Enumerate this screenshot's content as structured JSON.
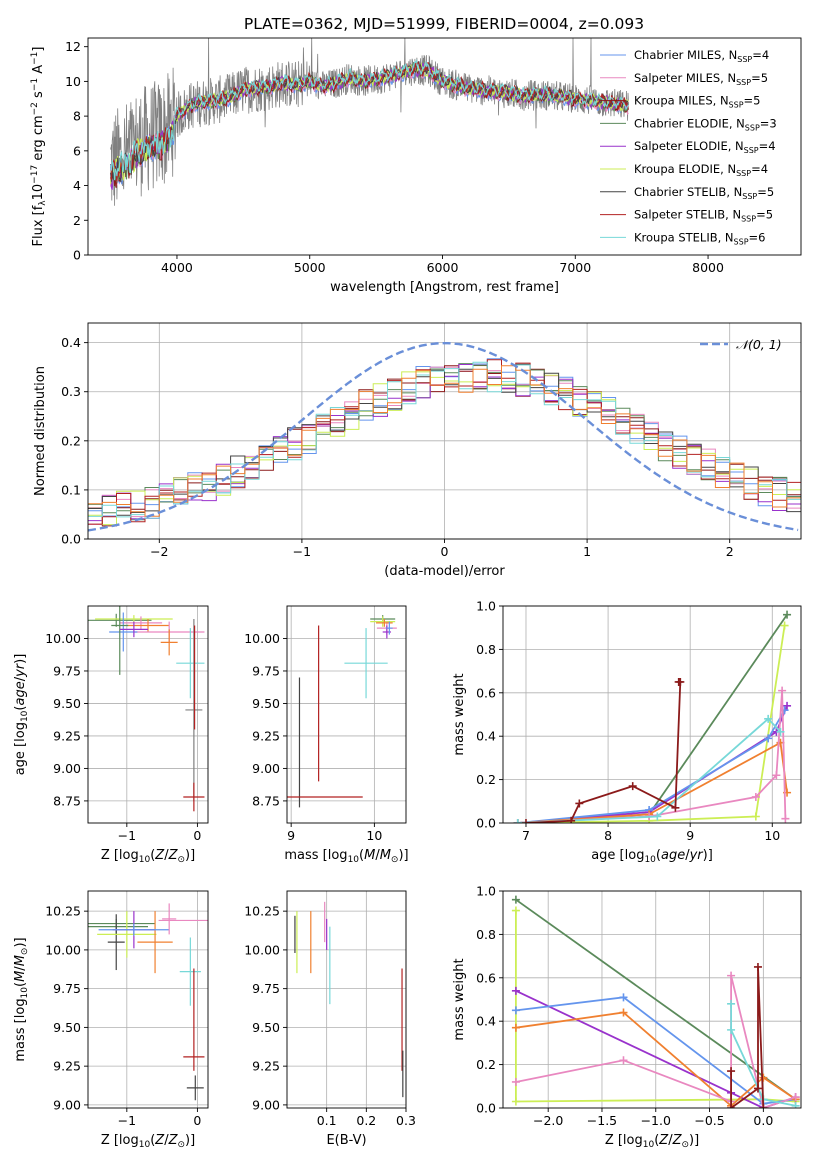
{
  "figure_title": "PLATE=0362, MJD=51999, FIBERID=0004, z=0.093",
  "chart_data": [
    {
      "id": "spectrum",
      "type": "line",
      "title": "PLATE=0362, MJD=51999, FIBERID=0004, z=0.093",
      "xlabel": "wavelength [Angstrom, rest frame]",
      "ylabel": "Flux [f_λ 10^-17 erg cm^-2 s^-1 A^-1]",
      "xlim": [
        3330,
        8700
      ],
      "ylim": [
        0,
        12.5
      ],
      "xticks": [
        4000,
        5000,
        6000,
        7000,
        8000
      ],
      "yticks": [
        0,
        2,
        4,
        6,
        8,
        10,
        12
      ],
      "observed_color": "#808080",
      "grid": false,
      "legend_position": "upper right",
      "continuum": {
        "x": [
          3500,
          3600,
          3700,
          3800,
          3900,
          4000,
          4100,
          4200,
          4300,
          4400,
          4500,
          4600,
          4700,
          4800,
          4900,
          5000,
          5100,
          5200,
          5300,
          5400,
          5500,
          5600,
          5700,
          5800,
          5900,
          6000,
          6200,
          6400,
          6600,
          6800,
          7000,
          7200,
          7400
        ],
        "y": [
          5.2,
          5.6,
          6.4,
          6.8,
          7.0,
          8.0,
          8.6,
          8.8,
          8.9,
          9.1,
          9.5,
          9.6,
          9.7,
          9.9,
          9.8,
          10.0,
          9.7,
          9.9,
          10.2,
          10.0,
          10.1,
          10.3,
          10.5,
          10.7,
          10.6,
          10.0,
          9.6,
          9.4,
          9.2,
          9.2,
          9.0,
          8.8,
          8.6
        ]
      },
      "series": [
        {
          "name": "Chabrier MILES, N_SSP=4",
          "color": "#6495ED"
        },
        {
          "name": "Salpeter MILES, N_SSP=5",
          "color": "#E988C0"
        },
        {
          "name": "Kroupa MILES, N_SSP=5",
          "color": "#8B1A1A"
        },
        {
          "name": "Chabrier ELODIE, N_SSP=3",
          "color": "#5B8A5B"
        },
        {
          "name": "Salpeter ELODIE, N_SSP=4",
          "color": "#9932CC"
        },
        {
          "name": "Kroupa ELODIE, N_SSP=4",
          "color": "#CCEE55"
        },
        {
          "name": "Chabrier STELIB, N_SSP=5",
          "color": "#444444"
        },
        {
          "name": "Salpeter STELIB, N_SSP=5",
          "color": "#B22222"
        },
        {
          "name": "Kroupa STELIB, N_SSP=6",
          "color": "#77D8D8"
        }
      ]
    },
    {
      "id": "residuals",
      "type": "line",
      "xlabel": "(data-model)/error",
      "ylabel": "Normed distribution",
      "xlim": [
        -2.5,
        2.5
      ],
      "ylim": [
        0,
        0.44
      ],
      "xticks": [
        -2,
        -1,
        0,
        1,
        2
      ],
      "yticks": [
        0.0,
        0.1,
        0.2,
        0.3,
        0.4
      ],
      "grid": true,
      "legend_position": "upper right",
      "reference_curve": {
        "label": "𝒩(0, 1)",
        "color": "#6A8FD8",
        "style": "dashed",
        "mean": 0,
        "sigma": 1
      },
      "bin_width": 0.1,
      "histogram_colors": [
        "#6495ED",
        "#E988C0",
        "#8B1A1A",
        "#5B8A5B",
        "#9932CC",
        "#CCEE55",
        "#444444",
        "#B22222",
        "#77D8D8",
        "#F08030"
      ]
    },
    {
      "id": "age_vs_Z",
      "type": "scatter",
      "xlabel": "Z [log10(Z/Z⊙)]",
      "ylabel": "age [log10(age/yr)]",
      "xlim": [
        -1.55,
        0.15
      ],
      "ylim": [
        8.58,
        10.25
      ],
      "xticks": [
        -1,
        0
      ],
      "yticks": [
        8.75,
        9.0,
        9.25,
        9.5,
        9.75,
        10.0
      ],
      "grid": true,
      "points": [
        {
          "x": -1.15,
          "xerr": 0.5,
          "y": 10.14,
          "yerr": 0.05,
          "color": "#5B8A5B"
        },
        {
          "x": -0.9,
          "xerr": 0.55,
          "y": 10.15,
          "yerr": 0.03,
          "color": "#CCEE55"
        },
        {
          "x": -0.8,
          "xerr": 0.3,
          "y": 10.12,
          "yerr": 0.05,
          "color": "#E988C0"
        },
        {
          "x": -0.7,
          "xerr": 0.3,
          "y": 10.1,
          "yerr": 0.05,
          "color": "#F08030"
        },
        {
          "x": -0.4,
          "xerr": 0.5,
          "y": 10.05,
          "yerr": 0.08,
          "color": "#E988C0"
        },
        {
          "x": -1.05,
          "xerr": 0.2,
          "y": 10.05,
          "yerr": 0.15,
          "color": "#6495ED"
        },
        {
          "x": -1.1,
          "xerr": 0.12,
          "y": 10.1,
          "yerr": 0.38,
          "color": "#5B8A5B"
        },
        {
          "x": -0.9,
          "xerr": 0.2,
          "y": 10.07,
          "yerr": 0.06,
          "color": "#9932CC"
        },
        {
          "x": -0.4,
          "xerr": 0.12,
          "y": 9.97,
          "yerr": 0.1,
          "color": "#F08030"
        },
        {
          "x": -0.1,
          "xerr": 0.2,
          "y": 9.81,
          "yerr": 0.27,
          "color": "#77D8D8"
        },
        {
          "x": -0.05,
          "xerr": 0.12,
          "y": 9.45,
          "yerr": 0.7,
          "color": "#808080"
        },
        {
          "x": -0.05,
          "xerr": 0.15,
          "y": 8.78,
          "yerr": 0.11,
          "color": "#B22222"
        },
        {
          "x": -0.04,
          "xerr": 0.0,
          "y": 9.7,
          "yerr": 0.4,
          "color": "#B22222"
        }
      ]
    },
    {
      "id": "age_vs_mass",
      "type": "scatter",
      "xlabel": "mass [log10(M/M⊙)]",
      "ylabel": "",
      "xlim": [
        8.95,
        10.38
      ],
      "ylim": [
        8.58,
        10.25
      ],
      "xticks": [
        9,
        10
      ],
      "yticks": [
        8.75,
        9.0,
        9.25,
        9.5,
        9.75,
        10.0
      ],
      "grid": true,
      "points": [
        {
          "x": 10.1,
          "xerr": 0.15,
          "y": 10.15,
          "yerr": 0.03,
          "color": "#5B8A5B"
        },
        {
          "x": 10.1,
          "xerr": 0.15,
          "y": 10.13,
          "yerr": 0.04,
          "color": "#CCEE55"
        },
        {
          "x": 10.15,
          "xerr": 0.12,
          "y": 10.08,
          "yerr": 0.05,
          "color": "#E988C0"
        },
        {
          "x": 10.12,
          "xerr": 0.1,
          "y": 10.12,
          "yerr": 0.03,
          "color": "#F08030"
        },
        {
          "x": 10.15,
          "xerr": 0.05,
          "y": 10.05,
          "yerr": 0.05,
          "color": "#9932CC"
        },
        {
          "x": 10.18,
          "xerr": 0.04,
          "y": 10.08,
          "yerr": 0.05,
          "color": "#6495ED"
        },
        {
          "x": 9.9,
          "xerr": 0.26,
          "y": 9.81,
          "yerr": 0.27,
          "color": "#77D8D8"
        },
        {
          "x": 9.1,
          "xerr": 0.0,
          "y": 9.2,
          "yerr": 0.5,
          "color": "#444444"
        },
        {
          "x": 9.33,
          "xerr": 0.53,
          "y": 8.78,
          "yerr": 0.0,
          "color": "#B22222"
        },
        {
          "x": 9.33,
          "xerr": 0.0,
          "y": 9.5,
          "yerr": 0.6,
          "color": "#B22222"
        },
        {
          "x": 9.1,
          "xerr": 0.0,
          "y": 8.78,
          "yerr": 0.0,
          "color": "#444444"
        }
      ]
    },
    {
      "id": "weight_vs_age",
      "type": "line",
      "xlabel": "age [log10(age/yr)]",
      "ylabel": "mass weight",
      "xlim": [
        6.72,
        10.35
      ],
      "ylim": [
        0,
        1.0
      ],
      "xticks": [
        7,
        8,
        9,
        10
      ],
      "yticks": [
        0.0,
        0.2,
        0.4,
        0.6,
        0.8,
        1.0
      ],
      "grid": true,
      "series": [
        {
          "color": "#5B8A5B",
          "x": [
            6.9,
            8.5,
            10.18
          ],
          "y": [
            0.0,
            0.04,
            0.96
          ]
        },
        {
          "color": "#CCEE55",
          "x": [
            6.9,
            8.5,
            9.8,
            10.15
          ],
          "y": [
            0.0,
            0.01,
            0.03,
            0.91
          ]
        },
        {
          "color": "#9932CC",
          "x": [
            6.9,
            8.5,
            10.05,
            10.18
          ],
          "y": [
            0.0,
            0.05,
            0.42,
            0.54
          ]
        },
        {
          "color": "#6495ED",
          "x": [
            6.9,
            8.5,
            9.95,
            10.15
          ],
          "y": [
            0.0,
            0.06,
            0.39,
            0.52
          ]
        },
        {
          "color": "#F08030",
          "x": [
            6.9,
            8.5,
            10.1,
            10.18
          ],
          "y": [
            0.0,
            0.04,
            0.37,
            0.14
          ]
        },
        {
          "color": "#E988C0",
          "x": [
            6.9,
            8.5,
            9.8,
            10.05,
            10.12,
            10.16
          ],
          "y": [
            0.0,
            0.03,
            0.12,
            0.22,
            0.61,
            0.02
          ]
        },
        {
          "color": "#77D8D8",
          "x": [
            6.9,
            8.6,
            9.95,
            10.1
          ],
          "y": [
            0.0,
            0.03,
            0.48,
            0.42
          ]
        },
        {
          "color": "#8B1A1A",
          "x": [
            7.0,
            7.55,
            7.65,
            8.3,
            8.82,
            8.88,
            8.86
          ],
          "y": [
            0.0,
            0.01,
            0.09,
            0.17,
            0.07,
            0.65,
            0.65
          ]
        }
      ]
    },
    {
      "id": "mass_vs_Z",
      "type": "scatter",
      "xlabel": "Z [log10(Z/Z⊙)]",
      "ylabel": "mass [log10(M/M⊙)]",
      "xlim": [
        -1.55,
        0.15
      ],
      "ylim": [
        8.98,
        10.38
      ],
      "xticks": [
        -1,
        0
      ],
      "yticks": [
        9.0,
        9.25,
        9.5,
        9.75,
        10.0,
        10.25
      ],
      "grid": true,
      "points": [
        {
          "x": -1.15,
          "xerr": 0.45,
          "y": 10.15,
          "yerr": 0.05,
          "color": "#5B8A5B"
        },
        {
          "x": -1.1,
          "xerr": 0.5,
          "y": 10.17,
          "yerr": 0.0,
          "color": "#5B8A5B"
        },
        {
          "x": -1.15,
          "xerr": 0.12,
          "y": 10.05,
          "yerr": 0.18,
          "color": "#444444"
        },
        {
          "x": -1.0,
          "xerr": 0.42,
          "y": 10.1,
          "yerr": 0.15,
          "color": "#CCEE55"
        },
        {
          "x": -0.9,
          "xerr": 0.3,
          "y": 10.13,
          "yerr": 0.12,
          "color": "#9932CC"
        },
        {
          "x": -0.6,
          "xerr": 0.25,
          "y": 10.05,
          "yerr": 0.2,
          "color": "#F08030"
        },
        {
          "x": -0.9,
          "xerr": 0.5,
          "y": 10.13,
          "yerr": 0.04,
          "color": "#6495ED"
        },
        {
          "x": -0.4,
          "xerr": 0.1,
          "y": 10.2,
          "yerr": 0.1,
          "color": "#E988C0"
        },
        {
          "x": -0.2,
          "xerr": 0.35,
          "y": 10.19,
          "yerr": 0.0,
          "color": "#E988C0"
        },
        {
          "x": -0.1,
          "xerr": 0.15,
          "y": 9.86,
          "yerr": 0.22,
          "color": "#77D8D8"
        },
        {
          "x": -0.05,
          "xerr": 0.15,
          "y": 9.31,
          "yerr": 0.0,
          "color": "#B22222"
        },
        {
          "x": -0.05,
          "xerr": 0.0,
          "y": 9.55,
          "yerr": 0.33,
          "color": "#B22222"
        },
        {
          "x": -0.03,
          "xerr": 0.12,
          "y": 9.11,
          "yerr": 0.08,
          "color": "#444444"
        }
      ]
    },
    {
      "id": "mass_vs_EBV",
      "type": "scatter",
      "xlabel": "E(B-V)",
      "ylabel": "",
      "xlim": [
        0.0,
        0.3
      ],
      "ylim": [
        8.98,
        10.38
      ],
      "xticks": [
        0.1,
        0.2,
        0.3
      ],
      "yticks": [
        9.0,
        9.25,
        9.5,
        9.75,
        10.0,
        10.25
      ],
      "grid": true,
      "points": [
        {
          "x": 0.02,
          "xerr": 0.0,
          "y": 10.1,
          "yerr": 0.12,
          "color": "#444444"
        },
        {
          "x": 0.025,
          "xerr": 0.0,
          "y": 10.05,
          "yerr": 0.2,
          "color": "#CCEE55"
        },
        {
          "x": 0.06,
          "xerr": 0.0,
          "y": 10.05,
          "yerr": 0.2,
          "color": "#F08030"
        },
        {
          "x": 0.095,
          "xerr": 0.0,
          "y": 10.18,
          "yerr": 0.13,
          "color": "#E988C0"
        },
        {
          "x": 0.1,
          "xerr": 0.0,
          "y": 10.1,
          "yerr": 0.1,
          "color": "#9932CC"
        },
        {
          "x": 0.108,
          "xerr": 0.0,
          "y": 9.9,
          "yerr": 0.25,
          "color": "#77D8D8"
        },
        {
          "x": 0.29,
          "xerr": 0.0,
          "y": 9.55,
          "yerr": 0.33,
          "color": "#B22222"
        },
        {
          "x": 0.292,
          "xerr": 0.0,
          "y": 9.2,
          "yerr": 0.15,
          "color": "#444444"
        }
      ]
    },
    {
      "id": "weight_vs_Z",
      "type": "line",
      "xlabel": "Z [log10(Z/Z⊙)]",
      "ylabel": "mass weight",
      "xlim": [
        -2.42,
        0.35
      ],
      "ylim": [
        0,
        1.0
      ],
      "xticks": [
        -2.0,
        -1.5,
        -1.0,
        -0.5,
        0.0
      ],
      "yticks": [
        0.0,
        0.2,
        0.4,
        0.6,
        0.8,
        1.0
      ],
      "grid": true,
      "series": [
        {
          "color": "#5B8A5B",
          "x": [
            -2.3,
            0.3
          ],
          "y": [
            0.96,
            0.04
          ]
        },
        {
          "color": "#CCEE55",
          "x": [
            -2.3,
            -2.3,
            0.0,
            0.3
          ],
          "y": [
            0.91,
            0.03,
            0.04,
            0.03
          ]
        },
        {
          "color": "#9932CC",
          "x": [
            -2.3,
            -0.3,
            0.0,
            0.3
          ],
          "y": [
            0.54,
            0.07,
            0.0,
            0.05
          ]
        },
        {
          "color": "#6495ED",
          "x": [
            -2.3,
            -1.3,
            0.0,
            0.3
          ],
          "y": [
            0.45,
            0.51,
            0.02,
            0.04
          ]
        },
        {
          "color": "#F08030",
          "x": [
            -2.3,
            -1.3,
            -0.3,
            0.0,
            0.3
          ],
          "y": [
            0.37,
            0.44,
            0.01,
            0.14,
            0.04
          ]
        },
        {
          "color": "#E988C0",
          "x": [
            -2.3,
            -1.3,
            -0.3,
            -0.3,
            0.0,
            0.3
          ],
          "y": [
            0.12,
            0.22,
            0.03,
            0.61,
            0.0,
            0.05
          ]
        },
        {
          "color": "#77D8D8",
          "x": [
            -0.3,
            -0.3,
            0.0,
            0.3
          ],
          "y": [
            0.48,
            0.36,
            0.04,
            0.01
          ]
        },
        {
          "color": "#8B1A1A",
          "x": [
            -0.3,
            -0.3,
            -0.05,
            -0.05,
            0.0
          ],
          "y": [
            0.17,
            0.0,
            0.09,
            0.65,
            0.0
          ]
        }
      ]
    }
  ]
}
